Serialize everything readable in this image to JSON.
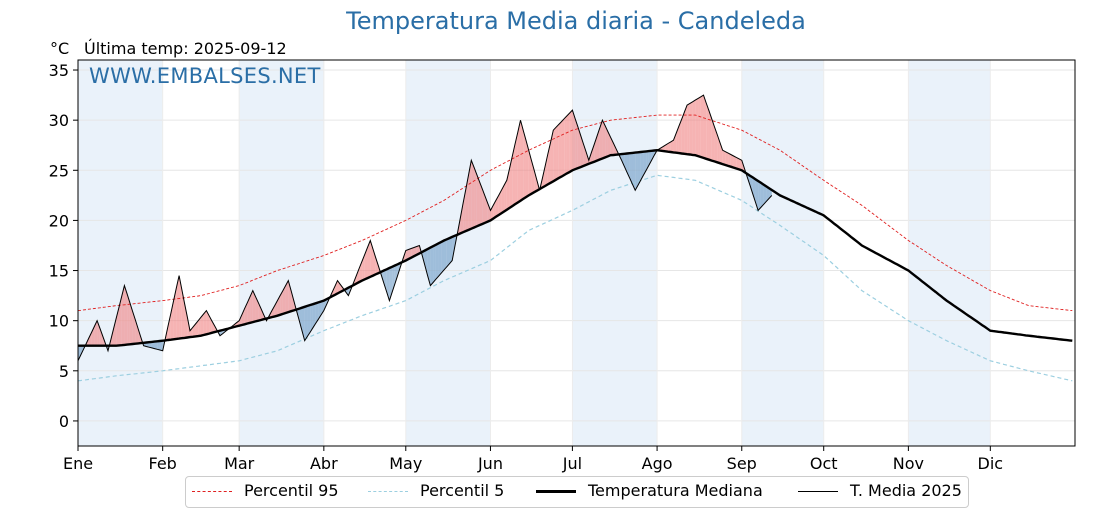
{
  "title": "Temperatura Media diaria - Candeleda",
  "unit": "°C",
  "last_temp": "Última temp: 2025-09-12",
  "watermark": "WWW.EMBALSES.NET",
  "legend": {
    "p95": "Percentil 95",
    "p5": "Percentil 5",
    "median": "Temperatura Mediana",
    "current": "T. Media 2025"
  },
  "colors": {
    "title": "#2a6ea6",
    "p95": "#e02020",
    "p5": "#9ccfe0",
    "median": "#000000",
    "current": "#000000",
    "above_fill": "#f08080",
    "below_fill": "#6a9ac4",
    "month_band": "#eaf2fa"
  },
  "chart_data": {
    "type": "line",
    "title": "Temperatura Media diaria - Candeleda",
    "xlabel": "",
    "ylabel": "°C",
    "ylim": [
      -2.5,
      36
    ],
    "yticks": [
      0,
      5,
      10,
      15,
      20,
      25,
      30,
      35
    ],
    "x_days": [
      1,
      32,
      60,
      91,
      121,
      152,
      182,
      213,
      244,
      274,
      305,
      335
    ],
    "months": [
      "Ene",
      "Feb",
      "Mar",
      "Abr",
      "May",
      "Jun",
      "Jul",
      "Ago",
      "Sep",
      "Oct",
      "Nov",
      "Dic"
    ],
    "grid": true,
    "legend_position": "bottom",
    "series": [
      {
        "name": "Percentil 95",
        "x": [
          1,
          15,
          32,
          46,
          60,
          74,
          91,
          105,
          121,
          135,
          152,
          166,
          182,
          196,
          213,
          227,
          244,
          258,
          274,
          288,
          305,
          319,
          335,
          349,
          365
        ],
        "values": [
          11,
          11.5,
          12,
          12.5,
          13.5,
          15,
          16.5,
          18,
          20,
          22,
          25,
          27,
          29,
          30,
          30.5,
          30.5,
          29,
          27,
          24,
          21.5,
          18,
          15.5,
          13,
          11.5,
          11
        ]
      },
      {
        "name": "Percentil 5",
        "x": [
          1,
          15,
          32,
          46,
          60,
          74,
          91,
          105,
          121,
          135,
          152,
          166,
          182,
          196,
          213,
          227,
          244,
          258,
          274,
          288,
          305,
          319,
          335,
          349,
          365
        ],
        "values": [
          4,
          4.5,
          5,
          5.5,
          6,
          7,
          9,
          10.5,
          12,
          14,
          16,
          19,
          21,
          23,
          24.5,
          24,
          22,
          19.5,
          16.5,
          13,
          10,
          8,
          6,
          5,
          4
        ]
      },
      {
        "name": "Temperatura Mediana",
        "x": [
          1,
          15,
          32,
          46,
          60,
          74,
          91,
          105,
          121,
          135,
          152,
          166,
          182,
          196,
          213,
          227,
          244,
          258,
          274,
          288,
          305,
          319,
          335,
          349,
          365
        ],
        "values": [
          7.5,
          7.5,
          8,
          8.5,
          9.5,
          10.5,
          12,
          14,
          16,
          18,
          20,
          22.5,
          25,
          26.5,
          27,
          26.5,
          25,
          22.5,
          20.5,
          17.5,
          15,
          12,
          9,
          8.5,
          8
        ]
      },
      {
        "name": "T. Media 2025",
        "x": [
          1,
          8,
          12,
          18,
          25,
          32,
          38,
          42,
          48,
          53,
          60,
          65,
          70,
          78,
          84,
          91,
          96,
          100,
          108,
          115,
          121,
          126,
          130,
          138,
          145,
          152,
          158,
          163,
          170,
          175,
          182,
          188,
          193,
          200,
          205,
          213,
          219,
          224,
          230,
          237,
          244,
          250,
          255
        ],
        "values": [
          6,
          10,
          7,
          13.5,
          7.5,
          7,
          14.5,
          9,
          11,
          8.5,
          10,
          13,
          10,
          14,
          8,
          11,
          14,
          12.5,
          18,
          12,
          17,
          17.5,
          13.5,
          16,
          26,
          21,
          24,
          30,
          23,
          29,
          31,
          26,
          30,
          26,
          23,
          27,
          28,
          31.5,
          32.5,
          27,
          26,
          21,
          22.5
        ]
      }
    ]
  }
}
